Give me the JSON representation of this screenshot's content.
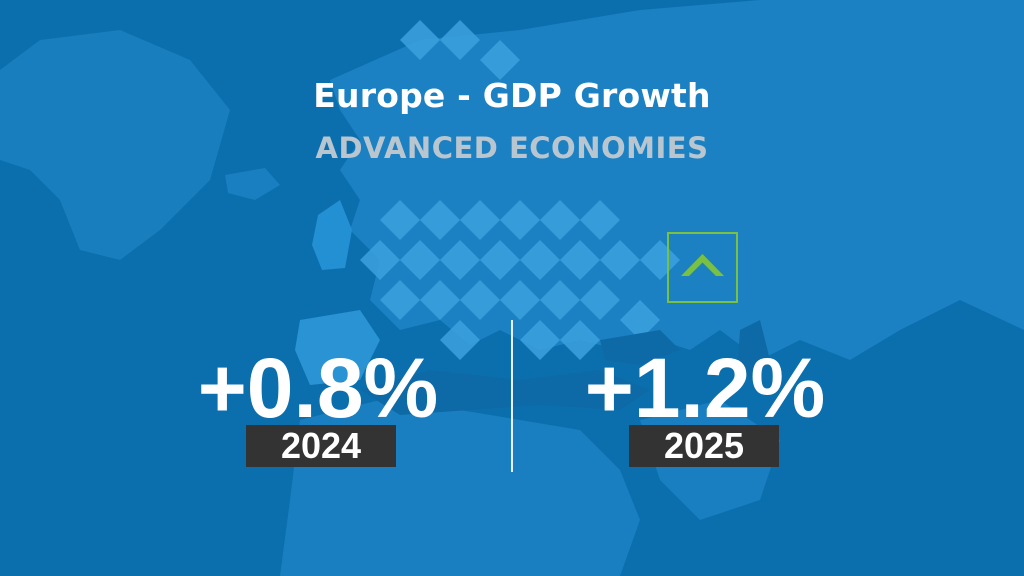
{
  "title": "Europe - GDP Growth",
  "subtitle": "ADVANCED ECONOMIES",
  "stats": [
    {
      "value": "+0.8%",
      "year": "2024"
    },
    {
      "value": "+1.2%",
      "year": "2025",
      "trend_icon": "up-chevron-icon"
    }
  ],
  "colors": {
    "background": "#0b73b3",
    "land": "#1f86c7",
    "accent_green": "#7ac142",
    "badge": "#333333",
    "subtitle": "#b9c6cf"
  }
}
